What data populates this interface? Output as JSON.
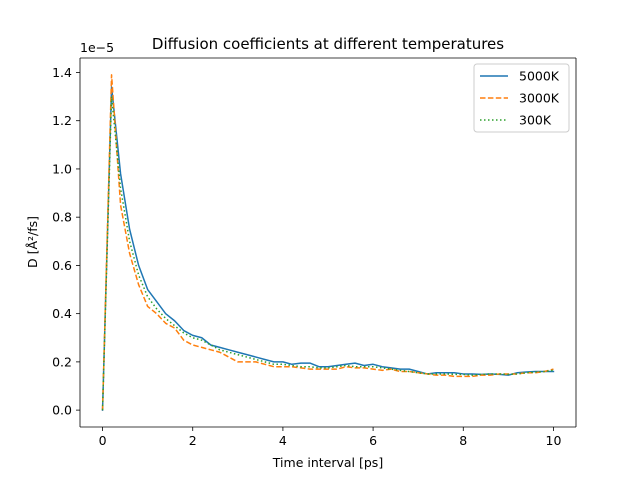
{
  "chart_data": {
    "type": "line",
    "title": "Diffusion coefficients at different temperatures",
    "xlabel": "Time interval [ps]",
    "ylabel": "D [Å²/fs]",
    "y_offset_label": "1e−5",
    "xlim": [
      -0.5,
      10.5
    ],
    "ylim": [
      -0.07,
      1.46
    ],
    "y_multiplier": "1e-5",
    "x_ticks": [
      0,
      2,
      4,
      6,
      8,
      10
    ],
    "x_tick_labels": [
      "0",
      "2",
      "4",
      "6",
      "8",
      "10"
    ],
    "y_ticks": [
      0.0,
      0.2,
      0.4,
      0.6,
      0.8,
      1.0,
      1.2,
      1.4
    ],
    "y_tick_labels": [
      "0.0",
      "0.2",
      "0.4",
      "0.6",
      "0.8",
      "1.0",
      "1.2",
      "1.4"
    ],
    "grid": false,
    "legend_position": "top-right",
    "series": [
      {
        "name": "5000K",
        "color": "#1f77b4",
        "dash": "solid",
        "x": [
          0,
          0.2,
          0.4,
          0.6,
          0.8,
          1.0,
          1.2,
          1.4,
          1.6,
          1.8,
          2.0,
          2.2,
          2.4,
          2.6,
          2.8,
          3.0,
          3.2,
          3.4,
          3.6,
          3.8,
          4.0,
          4.2,
          4.4,
          4.6,
          4.8,
          5.0,
          5.2,
          5.4,
          5.6,
          5.8,
          6.0,
          6.2,
          6.4,
          6.6,
          6.8,
          7.0,
          7.2,
          7.4,
          7.6,
          7.8,
          8.0,
          8.2,
          8.4,
          8.6,
          8.8,
          9.0,
          9.2,
          9.4,
          9.6,
          9.8,
          10.0
        ],
        "y": [
          0.0,
          1.34,
          0.98,
          0.75,
          0.6,
          0.5,
          0.45,
          0.4,
          0.37,
          0.33,
          0.31,
          0.3,
          0.27,
          0.26,
          0.25,
          0.24,
          0.23,
          0.22,
          0.21,
          0.2,
          0.2,
          0.19,
          0.195,
          0.195,
          0.18,
          0.18,
          0.185,
          0.19,
          0.195,
          0.185,
          0.19,
          0.18,
          0.175,
          0.17,
          0.17,
          0.16,
          0.15,
          0.155,
          0.155,
          0.155,
          0.15,
          0.15,
          0.148,
          0.15,
          0.148,
          0.145,
          0.155,
          0.158,
          0.16,
          0.16,
          0.16
        ]
      },
      {
        "name": "3000K",
        "color": "#ff7f0e",
        "dash": "dashed",
        "x": [
          0,
          0.2,
          0.4,
          0.6,
          0.8,
          1.0,
          1.2,
          1.4,
          1.6,
          1.8,
          2.0,
          2.2,
          2.4,
          2.6,
          2.8,
          3.0,
          3.2,
          3.4,
          3.6,
          3.8,
          4.0,
          4.2,
          4.4,
          4.6,
          4.8,
          5.0,
          5.2,
          5.4,
          5.6,
          5.8,
          6.0,
          6.2,
          6.4,
          6.6,
          6.8,
          7.0,
          7.2,
          7.4,
          7.6,
          7.8,
          8.0,
          8.2,
          8.4,
          8.6,
          8.8,
          9.0,
          9.2,
          9.4,
          9.6,
          9.8,
          10.0
        ],
        "y": [
          0.0,
          1.39,
          0.85,
          0.65,
          0.52,
          0.43,
          0.4,
          0.36,
          0.34,
          0.29,
          0.27,
          0.26,
          0.25,
          0.24,
          0.22,
          0.2,
          0.2,
          0.2,
          0.19,
          0.18,
          0.18,
          0.18,
          0.175,
          0.17,
          0.17,
          0.17,
          0.17,
          0.18,
          0.175,
          0.175,
          0.17,
          0.165,
          0.17,
          0.16,
          0.16,
          0.155,
          0.15,
          0.145,
          0.145,
          0.14,
          0.14,
          0.14,
          0.145,
          0.145,
          0.15,
          0.15,
          0.15,
          0.155,
          0.155,
          0.16,
          0.17
        ]
      },
      {
        "name": "300K",
        "color": "#2ca02c",
        "dash": "dotted",
        "x": [
          0,
          0.2,
          0.4,
          0.6,
          0.8,
          1.0,
          1.2,
          1.4,
          1.6,
          1.8,
          2.0,
          2.2,
          2.4,
          2.6,
          2.8,
          3.0,
          3.2,
          3.4,
          3.6,
          3.8,
          4.0,
          4.2,
          4.4,
          4.6,
          4.8,
          5.0,
          5.2,
          5.4,
          5.6,
          5.8,
          6.0,
          6.2,
          6.4,
          6.6,
          6.8,
          7.0,
          7.2,
          7.4,
          7.6,
          7.8,
          8.0,
          8.2,
          8.4,
          8.6,
          8.8,
          9.0,
          9.2,
          9.4,
          9.6,
          9.8,
          10.0
        ],
        "y": [
          0.0,
          1.3,
          0.92,
          0.7,
          0.56,
          0.47,
          0.42,
          0.38,
          0.35,
          0.32,
          0.3,
          0.29,
          0.27,
          0.25,
          0.24,
          0.23,
          0.22,
          0.21,
          0.2,
          0.19,
          0.19,
          0.185,
          0.18,
          0.18,
          0.175,
          0.175,
          0.18,
          0.185,
          0.18,
          0.18,
          0.18,
          0.175,
          0.17,
          0.165,
          0.16,
          0.155,
          0.15,
          0.15,
          0.15,
          0.148,
          0.148,
          0.145,
          0.148,
          0.15,
          0.15,
          0.148,
          0.15,
          0.155,
          0.158,
          0.16,
          0.165
        ]
      }
    ]
  }
}
